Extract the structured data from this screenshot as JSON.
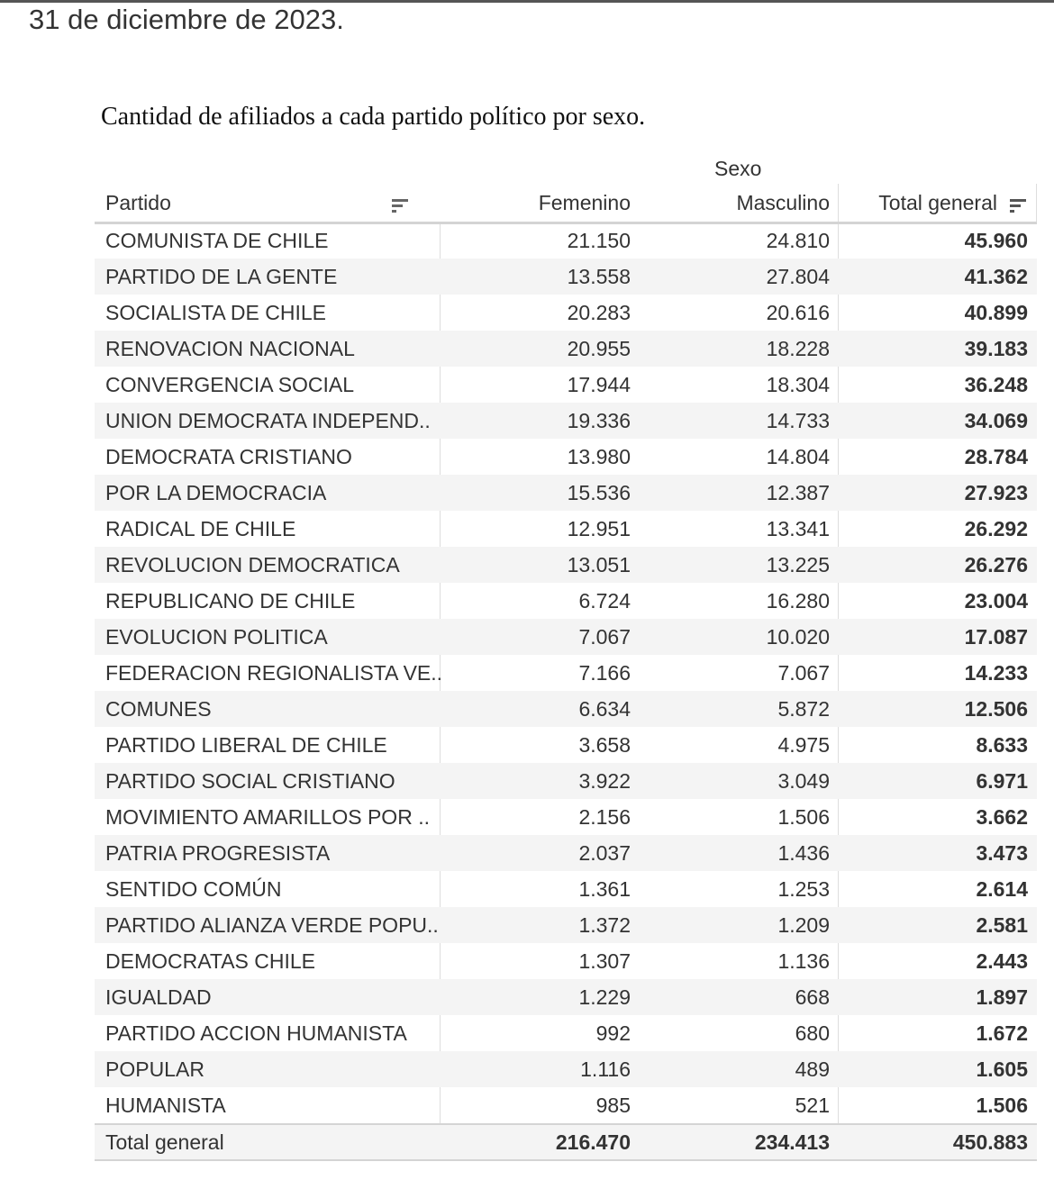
{
  "date_line": "31 de diciembre de 2023.",
  "caption": "Cantidad de afiliados a cada partido político por sexo.",
  "table": {
    "group_header": "Sexo",
    "columns": [
      "Partido",
      "Femenino",
      "Masculino",
      "Total general"
    ],
    "rows": [
      [
        "COMUNISTA DE CHILE",
        "21.150",
        "24.810",
        "45.960"
      ],
      [
        "PARTIDO DE LA GENTE",
        "13.558",
        "27.804",
        "41.362"
      ],
      [
        "SOCIALISTA DE CHILE",
        "20.283",
        "20.616",
        "40.899"
      ],
      [
        "RENOVACION NACIONAL",
        "20.955",
        "18.228",
        "39.183"
      ],
      [
        "CONVERGENCIA SOCIAL",
        "17.944",
        "18.304",
        "36.248"
      ],
      [
        "UNION DEMOCRATA INDEPEND..",
        "19.336",
        "14.733",
        "34.069"
      ],
      [
        "DEMOCRATA CRISTIANO",
        "13.980",
        "14.804",
        "28.784"
      ],
      [
        "POR LA DEMOCRACIA",
        "15.536",
        "12.387",
        "27.923"
      ],
      [
        "RADICAL DE CHILE",
        "12.951",
        "13.341",
        "26.292"
      ],
      [
        "REVOLUCION DEMOCRATICA",
        "13.051",
        "13.225",
        "26.276"
      ],
      [
        "REPUBLICANO DE CHILE",
        "6.724",
        "16.280",
        "23.004"
      ],
      [
        "EVOLUCION POLITICA",
        "7.067",
        "10.020",
        "17.087"
      ],
      [
        "FEDERACION REGIONALISTA VE..",
        "7.166",
        "7.067",
        "14.233"
      ],
      [
        "COMUNES",
        "6.634",
        "5.872",
        "12.506"
      ],
      [
        "PARTIDO LIBERAL DE CHILE",
        "3.658",
        "4.975",
        "8.633"
      ],
      [
        "PARTIDO SOCIAL CRISTIANO",
        "3.922",
        "3.049",
        "6.971"
      ],
      [
        "MOVIMIENTO AMARILLOS POR ..",
        "2.156",
        "1.506",
        "3.662"
      ],
      [
        "PATRIA PROGRESISTA",
        "2.037",
        "1.436",
        "3.473"
      ],
      [
        "SENTIDO COMÚN",
        "1.361",
        "1.253",
        "2.614"
      ],
      [
        "PARTIDO ALIANZA VERDE POPU..",
        "1.372",
        "1.209",
        "2.581"
      ],
      [
        "DEMOCRATAS CHILE",
        "1.307",
        "1.136",
        "2.443"
      ],
      [
        "IGUALDAD",
        "1.229",
        "668",
        "1.897"
      ],
      [
        "PARTIDO ACCION HUMANISTA",
        "992",
        "680",
        "1.672"
      ],
      [
        "POPULAR",
        "1.116",
        "489",
        "1.605"
      ],
      [
        "HUMANISTA",
        "985",
        "521",
        "1.506"
      ]
    ],
    "total_row": [
      "Total general",
      "216.470",
      "234.413",
      "450.883"
    ]
  }
}
